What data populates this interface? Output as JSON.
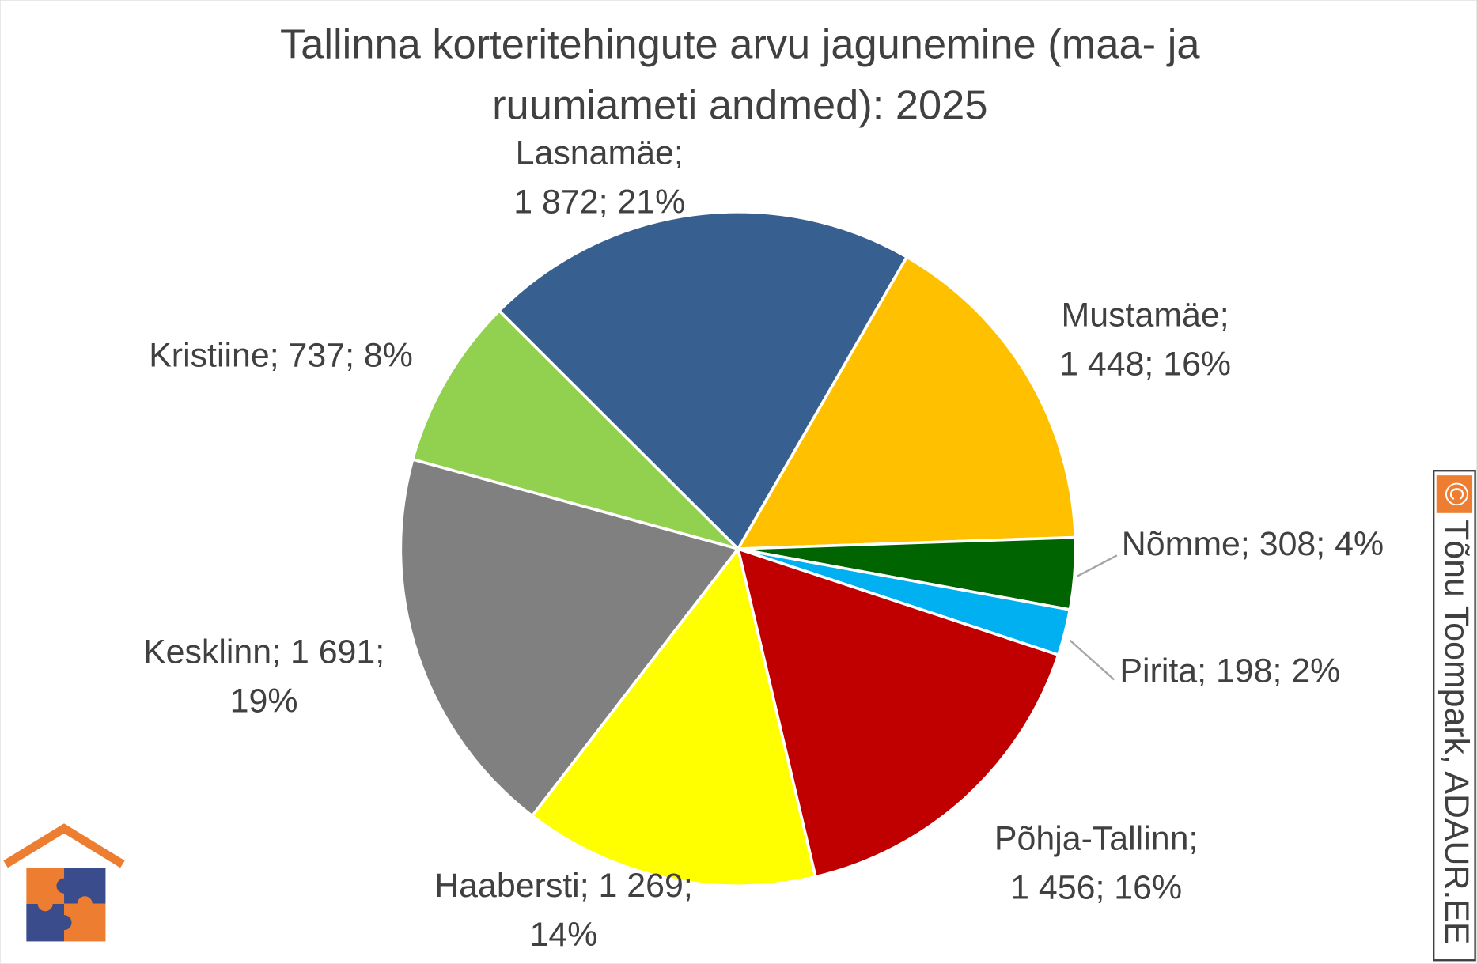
{
  "chart_data": {
    "type": "pie",
    "title": [
      "Tallinna korteritehingute arvu jagunemine (maa- ja",
      "ruumiameti andmed): 2025"
    ],
    "values": [
      1448,
      308,
      198,
      1456,
      1269,
      1691,
      737,
      1872
    ],
    "value_labels": [
      [
        "Mustamäe;",
        "1 448; 16%"
      ],
      [
        "Nõmme; 308; 4%"
      ],
      [
        "Pirita; 198; 2%"
      ],
      [
        "Põhja-Tallinn;",
        "1 456; 16%"
      ],
      [
        "Haabersti; 1 269;",
        "14%"
      ],
      [
        "Kesklinn; 1 691;",
        "19%"
      ],
      [
        "Kristiine; 737; 8%"
      ],
      [
        "Lasnamäe;",
        "1 872; 21%"
      ]
    ],
    "colors": [
      "#FFC000",
      "#006400",
      "#00B0F0",
      "#C00000",
      "#FFFF00",
      "#808080",
      "#92D050",
      "#375F8F"
    ],
    "start_angle": 30,
    "copyright_symbol": "©",
    "watermark": "Tõnu Toompark, ADAUR.EE"
  }
}
